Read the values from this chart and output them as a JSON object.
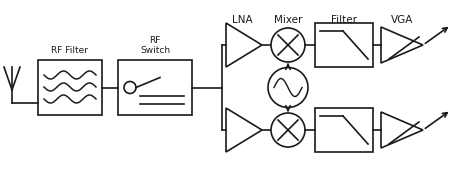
{
  "bg_color": "#ffffff",
  "line_color": "#1a1a1a",
  "line_width": 1.2,
  "labels": {
    "rf_filter": "RF Filter",
    "rf_switch": "RF\nSwitch",
    "lna": "LNA",
    "mixer": "Mixer",
    "filter": "Filter",
    "vga": "VGA"
  },
  "fig_width": 4.74,
  "fig_height": 1.74,
  "dpi": 100
}
